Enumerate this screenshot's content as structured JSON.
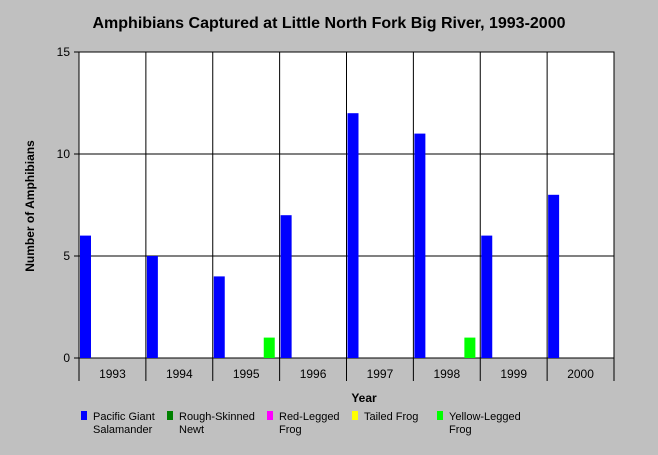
{
  "chart_data": {
    "type": "bar",
    "title": "Amphibians Captured at Little North Fork Big River, 1993-2000",
    "xlabel": "Year",
    "ylabel": "Number of Amphibians",
    "ylim": [
      0,
      15
    ],
    "yticks": [
      "0",
      "5",
      "10",
      "15"
    ],
    "grid": true,
    "legend_position": "bottom",
    "categories": [
      "1993",
      "1994",
      "1995",
      "1996",
      "1997",
      "1998",
      "1999",
      "2000"
    ],
    "series": [
      {
        "name": "Pacific Giant Salamander",
        "legend_lines": [
          "Pacific Giant",
          "Salamander"
        ],
        "color": "#0000ff",
        "values": [
          6,
          5,
          4,
          7,
          12,
          11,
          6,
          8
        ]
      },
      {
        "name": "Rough-Skinned Newt",
        "legend_lines": [
          "Rough-Skinned",
          "Newt"
        ],
        "color": "#008000",
        "values": [
          0,
          0,
          0,
          0,
          0,
          0,
          0,
          0
        ]
      },
      {
        "name": "Red-Legged Frog",
        "legend_lines": [
          "Red-Legged",
          "Frog"
        ],
        "color": "#ff00ff",
        "values": [
          0,
          0,
          0,
          0,
          0,
          0,
          0,
          0
        ]
      },
      {
        "name": "Tailed Frog",
        "legend_lines": [
          "Tailed Frog"
        ],
        "color": "#ffff00",
        "values": [
          0,
          0,
          0,
          0,
          0,
          0,
          0,
          0
        ]
      },
      {
        "name": "Yellow-Legged Frog",
        "legend_lines": [
          "Yellow-Legged",
          "Frog"
        ],
        "color": "#00ff00",
        "values": [
          0,
          0,
          1,
          0,
          0,
          1,
          0,
          0
        ]
      }
    ]
  }
}
